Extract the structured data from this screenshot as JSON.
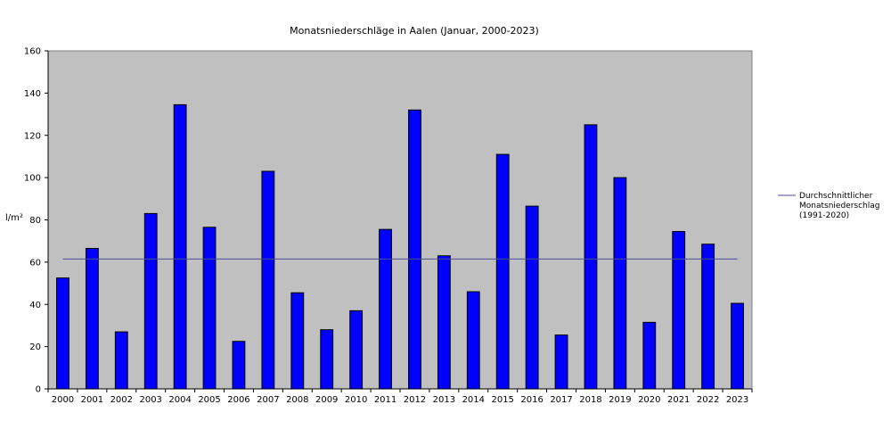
{
  "chart_data": {
    "type": "bar",
    "title": "Monatsniederschläge in Aalen (Januar, 2000-2023)",
    "ylabel": "l/m²",
    "xlabel": "",
    "ylim": [
      0,
      160
    ],
    "yticks": [
      0,
      20,
      40,
      60,
      80,
      100,
      120,
      140,
      160
    ],
    "categories": [
      "2000",
      "2001",
      "2002",
      "2003",
      "2004",
      "2005",
      "2006",
      "2007",
      "2008",
      "2009",
      "2010",
      "2011",
      "2012",
      "2013",
      "2014",
      "2015",
      "2016",
      "2017",
      "2018",
      "2019",
      "2020",
      "2021",
      "2022",
      "2023"
    ],
    "series": [
      {
        "values": [
          52.5,
          66.5,
          27,
          83,
          134.5,
          76.5,
          22.5,
          103,
          45.5,
          28,
          37,
          75.5,
          132,
          63,
          46,
          111,
          86.5,
          25.5,
          125,
          100,
          31.5,
          74.5,
          68.5,
          40.5
        ],
        "color": "#0000ff"
      }
    ],
    "reference_line": {
      "name": "Durchschnittlicher Monatsniederschlag (1991-2020)",
      "name_lines": [
        "Durchschnittlicher",
        "Monatsniederschlag",
        "(1991-2020)"
      ],
      "value": 61.5,
      "color": "#4c4c99"
    },
    "legend_position": "right",
    "plot_background": "#c0c0c0",
    "grid": false
  }
}
